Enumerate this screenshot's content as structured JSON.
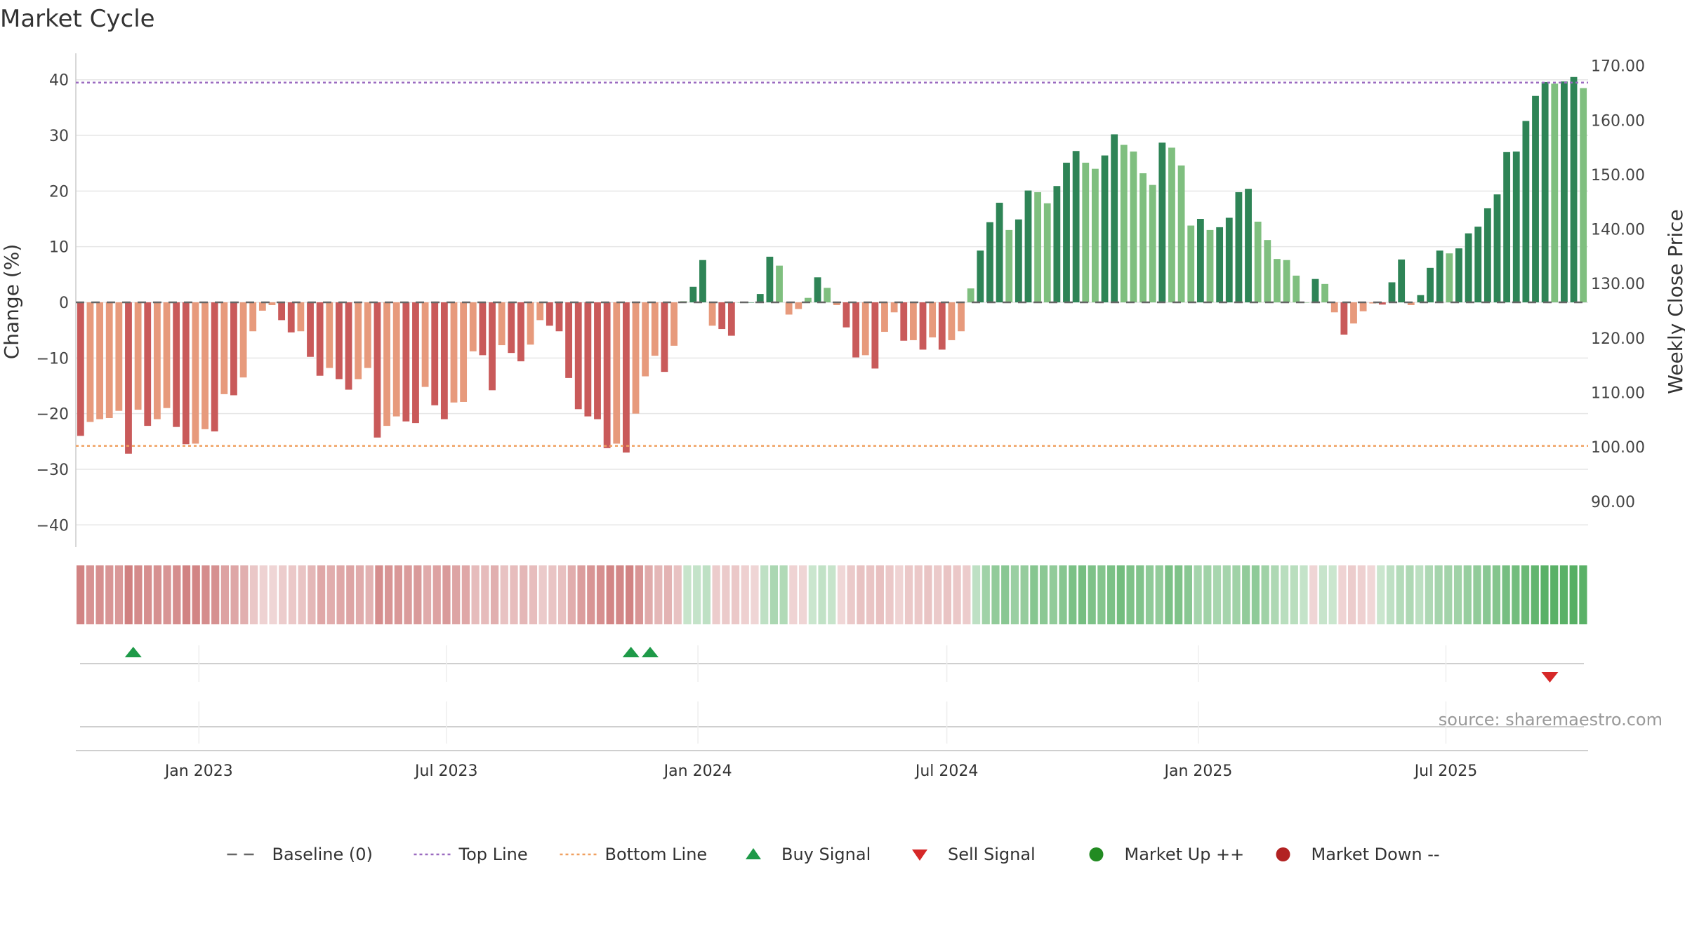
{
  "colors": {
    "up_dark": "#2e8456",
    "up_light": "#7fbf7f",
    "down_dark": "#c95a5a",
    "down_light": "#e79a7c",
    "top_line": "#9b6bc0",
    "bottom_line": "#f0a060",
    "baseline": "#666666",
    "buy": "#1e9a48",
    "sell": "#d62828",
    "market_up": "#228b22",
    "market_down": "#b22222",
    "grid": "#e6e6e6"
  },
  "chart_data": {
    "type": "bar",
    "title": "Market Cycle",
    "source": "source: sharemaestro.com",
    "y_left": {
      "label": "Change (%)",
      "ylim": [
        -44,
        44
      ],
      "ticks": [
        40,
        30,
        20,
        10,
        0,
        -10,
        -20,
        -30,
        -40
      ],
      "tick_labels": [
        "40",
        "30",
        "20",
        "10",
        "0",
        "−10",
        "−20",
        "−30",
        "−40"
      ]
    },
    "y_right": {
      "label": "Weekly Close Price",
      "ylim": [
        81.6,
        171.5
      ],
      "ticks": [
        170,
        160,
        150,
        140,
        130,
        120,
        110,
        100,
        90
      ],
      "tick_labels": [
        "170.00",
        "160.00",
        "150.00",
        "140.00",
        "130.00",
        "120.00",
        "110.00",
        "100.00",
        "90.00"
      ]
    },
    "x_axis": {
      "start": "2022-10-03",
      "end": "2025-10-13",
      "ticks": [
        {
          "date": "2023-01-01",
          "label": "Jan 2023"
        },
        {
          "date": "2023-07-01",
          "label": "Jul 2023"
        },
        {
          "date": "2024-01-01",
          "label": "Jan 2024"
        },
        {
          "date": "2024-07-01",
          "label": "Jul 2024"
        },
        {
          "date": "2025-01-01",
          "label": "Jan 2025"
        },
        {
          "date": "2025-07-01",
          "label": "Jul 2025"
        }
      ]
    },
    "reference_lines": {
      "baseline": 0,
      "top_line": 39.5,
      "bottom_line": -25.8
    },
    "series": [
      {
        "name": "Change (%)",
        "axis": "left",
        "values": [
          -24,
          -21.5,
          -21,
          -20.8,
          -19.5,
          -27.2,
          -19.3,
          -22.2,
          -21,
          -19,
          -22.4,
          -25.5,
          -25.4,
          -22.8,
          -23.2,
          -16.5,
          -16.7,
          -13.5,
          -5.2,
          -1.5,
          -0.5,
          -3.2,
          -5.4,
          -5.2,
          -9.8,
          -13.2,
          -11.8,
          -13.8,
          -15.7,
          -13.8,
          -11.8,
          -24.3,
          -22.2,
          -20.5,
          -21.4,
          -21.7,
          -15.2,
          -18.5,
          -21,
          -18,
          -17.9,
          -8.8,
          -9.5,
          -15.8,
          -7.7,
          -9.1,
          -10.6,
          -7.6,
          -3.2,
          -4.2,
          -5.2,
          -13.6,
          -19.2,
          -20.5,
          -21,
          -26.2,
          -25.4,
          -27,
          -20,
          -13.3,
          -9.6,
          -12.5,
          -7.8,
          0.2,
          2.8,
          7.6,
          -4.2,
          -4.8,
          -6,
          0,
          0,
          1.5,
          8.2,
          6.6,
          -2.2,
          -1.2,
          0.8,
          4.5,
          2.6,
          -0.5,
          -4.5,
          -9.9,
          -9.5,
          -11.9,
          -5.3,
          -1.8,
          -6.9,
          -6.8,
          -8.5,
          -6.3,
          -8.5,
          -6.8,
          -5.2,
          2.5,
          9.3,
          14.4,
          17.9,
          13,
          14.9,
          20.1,
          19.8,
          17.8,
          20.9,
          25.1,
          27.2,
          25.1,
          24,
          26.4,
          30.2,
          28.3,
          27.1,
          23.2,
          21.1,
          28.7,
          27.8,
          24.6,
          13.8,
          15,
          13,
          13.5,
          15.2,
          19.8,
          20.4,
          14.5,
          11.2,
          7.8,
          7.6,
          4.8,
          0,
          4.2,
          3.3,
          -1.8,
          -5.8,
          -3.8,
          -1.6,
          -0.2,
          -0.4,
          3.6,
          7.7,
          -0.5,
          1.3,
          6.2,
          9.3,
          8.8,
          9.7,
          12.4,
          13.6,
          16.9,
          19.4,
          27,
          27.1,
          32.6,
          37.1,
          39.6,
          39.3,
          39.7,
          40.5,
          38.5
        ]
      }
    ],
    "strength_strip": [
      -90,
      -75,
      -78,
      -72,
      -70,
      -92,
      -82,
      -78,
      -76,
      -72,
      -80,
      -90,
      -88,
      -80,
      -76,
      -60,
      -56,
      -48,
      -25,
      -15,
      -12,
      -20,
      -24,
      -28,
      -40,
      -55,
      -50,
      -55,
      -58,
      -52,
      -45,
      -80,
      -72,
      -70,
      -66,
      -68,
      -52,
      -60,
      -68,
      -58,
      -55,
      -35,
      -36,
      -48,
      -30,
      -34,
      -40,
      -34,
      -22,
      -28,
      -32,
      -50,
      -65,
      -72,
      -78,
      -88,
      -86,
      -90,
      -72,
      -52,
      -40,
      -44,
      -30,
      12,
      14,
      18,
      -20,
      -22,
      -24,
      -16,
      -12,
      18,
      32,
      28,
      -14,
      -12,
      10,
      16,
      12,
      -10,
      -22,
      -30,
      -28,
      -32,
      -24,
      -14,
      -24,
      -24,
      -28,
      -22,
      -28,
      -24,
      -20,
      18,
      40,
      50,
      56,
      44,
      48,
      58,
      55,
      50,
      58,
      66,
      70,
      64,
      60,
      66,
      72,
      64,
      62,
      52,
      50,
      66,
      64,
      56,
      36,
      40,
      34,
      36,
      40,
      50,
      52,
      40,
      30,
      22,
      22,
      14,
      -12,
      12,
      10,
      -14,
      -20,
      -16,
      -10,
      10,
      18,
      26,
      30,
      20,
      30,
      36,
      38,
      40,
      46,
      50,
      56,
      60,
      70,
      72,
      78,
      84,
      90,
      90,
      90,
      92,
      90
    ],
    "signals": [
      {
        "type": "buy",
        "date": "2022-11-14"
      },
      {
        "type": "buy",
        "date": "2023-11-13"
      },
      {
        "type": "buy",
        "date": "2023-11-27"
      },
      {
        "type": "sell",
        "date": "2025-09-15"
      }
    ],
    "legend": [
      {
        "key": "baseline",
        "label": "Baseline (0)"
      },
      {
        "key": "top",
        "label": "Top Line"
      },
      {
        "key": "bottom",
        "label": "Bottom Line"
      },
      {
        "key": "buy",
        "label": "Buy Signal"
      },
      {
        "key": "sell",
        "label": "Sell Signal"
      },
      {
        "key": "up",
        "label": "Market Up ++"
      },
      {
        "key": "down",
        "label": "Market Down --"
      }
    ]
  }
}
